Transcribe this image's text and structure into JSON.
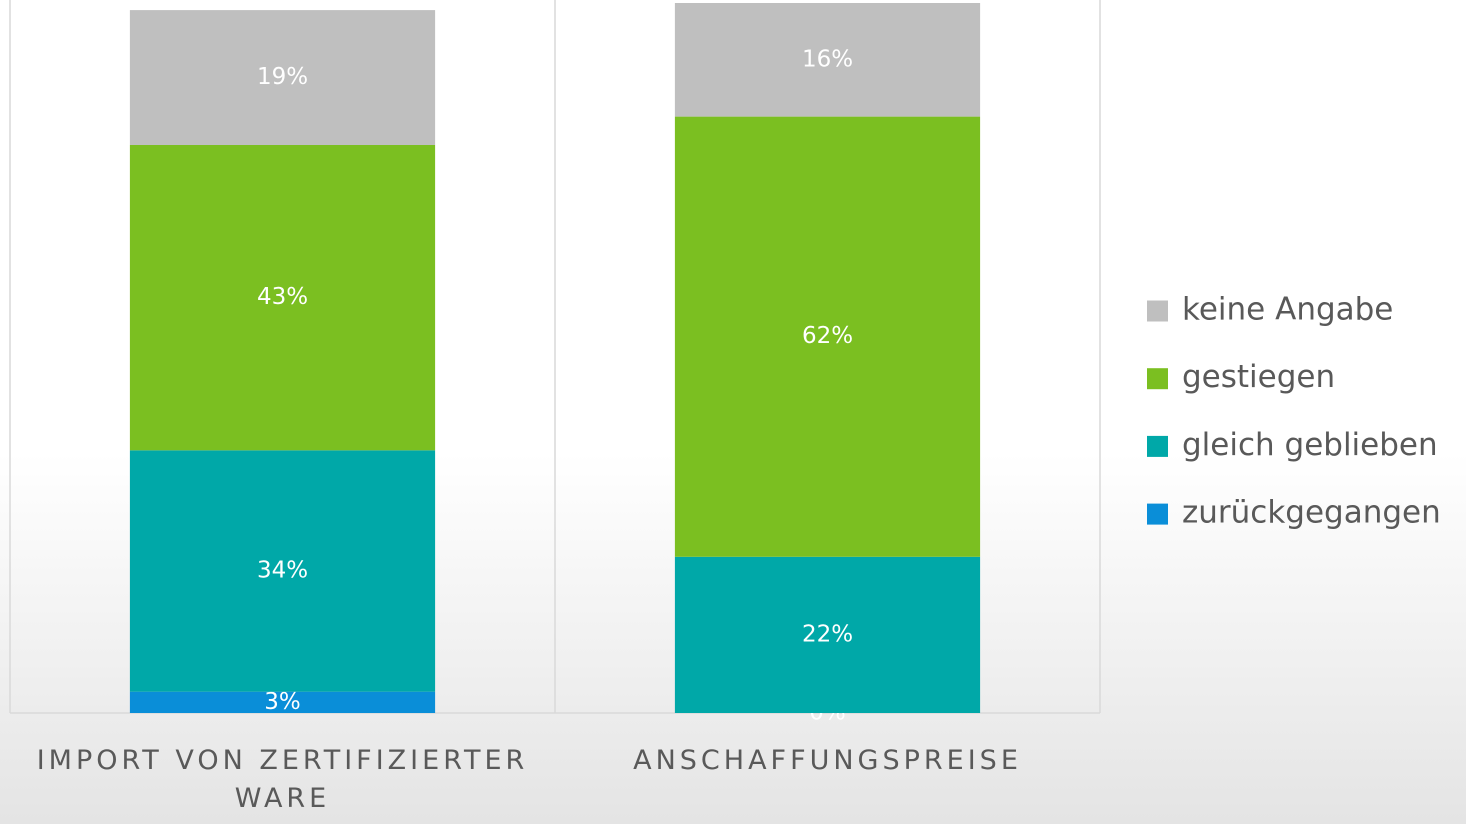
{
  "chart_data": {
    "type": "stacked_bar",
    "categories": [
      "IMPORT VON ZERTIFIZIERTER WARE",
      "ANSCHAFFUNGSPREISE"
    ],
    "series": [
      {
        "name": "zurückgegangen",
        "color": "#0a8ed8",
        "values": [
          3,
          0
        ],
        "value_labels": [
          "3%",
          "0%"
        ]
      },
      {
        "name": "gleich geblieben",
        "color": "#00a8a8",
        "values": [
          34,
          22
        ],
        "value_labels": [
          "34%",
          "22%"
        ]
      },
      {
        "name": "gestiegen",
        "color": "#7bbf21",
        "values": [
          43,
          62
        ],
        "value_labels": [
          "43%",
          "62%"
        ]
      },
      {
        "name": "keine Angabe",
        "color": "#bfbfbf",
        "values": [
          19,
          16
        ],
        "value_labels": [
          "19%",
          "16%"
        ]
      }
    ],
    "ylim": [
      0,
      100
    ],
    "legend": "right"
  }
}
